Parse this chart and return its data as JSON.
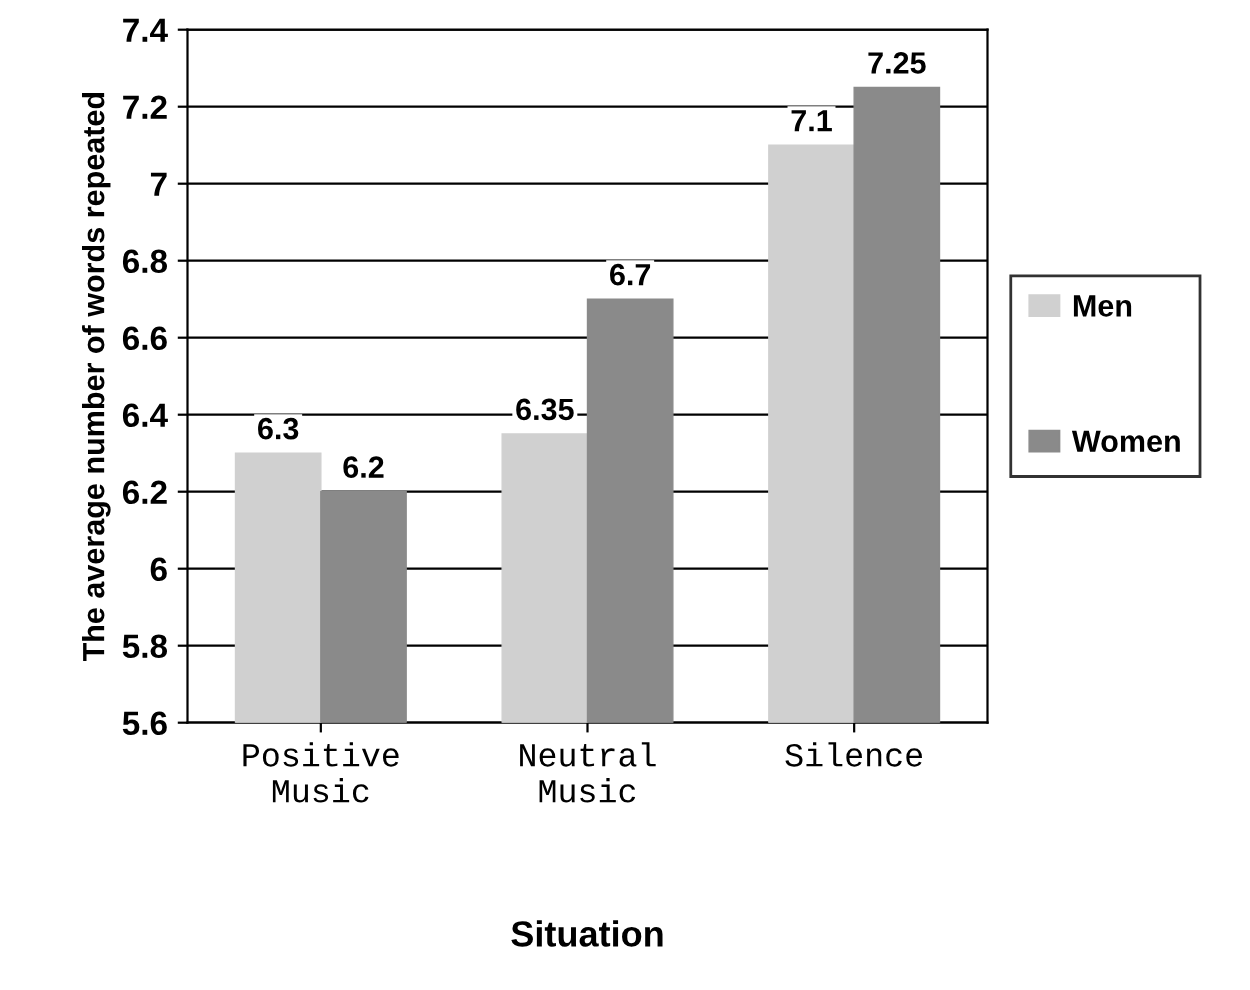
{
  "chart_data": {
    "type": "bar",
    "xlabel": "Situation",
    "ylabel": "The average number of words repeated",
    "categories": [
      "Positive\nMusic",
      "Neutral\nMusic",
      "Silence"
    ],
    "series": [
      {
        "name": "Men",
        "color": "#d0d0d0",
        "values": [
          6.3,
          6.35,
          7.1
        ]
      },
      {
        "name": "Women",
        "color": "#8a8a8a",
        "values": [
          6.2,
          6.7,
          7.25
        ]
      }
    ],
    "ylim": [
      5.6,
      7.4
    ],
    "yticks": [
      5.6,
      5.8,
      6,
      6.2,
      6.4,
      6.6,
      6.8,
      7,
      7.2,
      7.4
    ],
    "grid": "y",
    "legend": "right",
    "data_labels": true
  }
}
